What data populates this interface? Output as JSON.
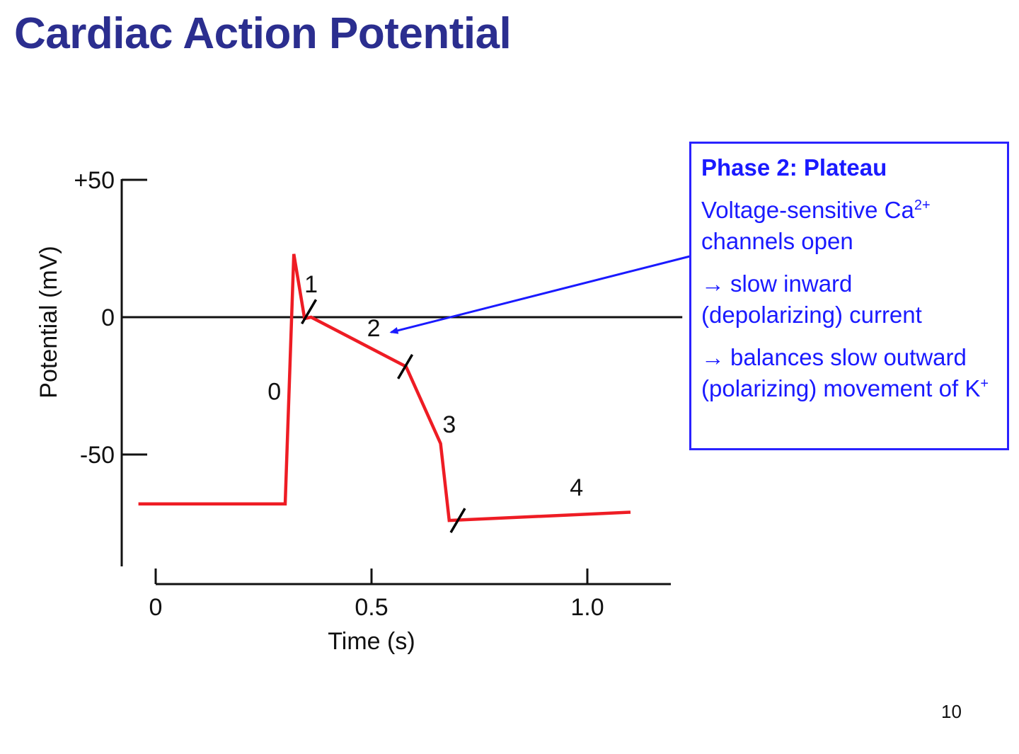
{
  "slide": {
    "title": "Cardiac Action Potential",
    "page_number": "10"
  },
  "colors": {
    "title": "#2b2e8f",
    "trace": "#ee1c24",
    "callout": "#1a1aff",
    "axis": "#111111"
  },
  "chart_data": {
    "type": "line",
    "title": "",
    "xlabel": "Time (s)",
    "ylabel": "Potential (mV)",
    "xlim": [
      -0.03,
      1.2
    ],
    "ylim": [
      -91,
      50
    ],
    "x_ticks": [
      {
        "value": 0,
        "label": "0"
      },
      {
        "value": 0.5,
        "label": "0.5"
      },
      {
        "value": 1.0,
        "label": "1.0"
      }
    ],
    "y_ticks": [
      {
        "value": 50,
        "label": "+50"
      },
      {
        "value": 0,
        "label": "0"
      },
      {
        "value": -50,
        "label": "-50"
      }
    ],
    "reference_line": {
      "y": 0,
      "x_end": 1.22
    },
    "series": [
      {
        "name": "Action potential",
        "x": [
          -0.04,
          0.3,
          0.32,
          0.345,
          0.36,
          0.58,
          0.66,
          0.68,
          1.1
        ],
        "y": [
          -68,
          -68,
          23,
          -0.5,
          0,
          -18,
          -46,
          -74,
          -71
        ]
      }
    ],
    "phase_markers": [
      {
        "x": 0.355,
        "y": 2
      },
      {
        "x": 0.578,
        "y": -18
      },
      {
        "x": 0.7,
        "y": -74
      }
    ],
    "phase_labels": [
      {
        "label": "0",
        "x": 0.275,
        "y": -30
      },
      {
        "label": "1",
        "x": 0.36,
        "y": 9
      },
      {
        "label": "2",
        "x": 0.505,
        "y": -7
      },
      {
        "label": "3",
        "x": 0.68,
        "y": -42
      },
      {
        "label": "4",
        "x": 0.975,
        "y": -65
      }
    ],
    "annotation_arrow_target": {
      "x": 0.545,
      "y": -5.5
    }
  },
  "callout": {
    "title": "Phase 2: Plateau",
    "line1": "Voltage-sensitive Ca",
    "line1_sup": "2+",
    "line2": "channels open",
    "arrow_glyph": "→",
    "para2": "slow inward (depolarizing) current",
    "para3": "balances slow outward (polarizing) movement of K",
    "para3_sup": "+"
  }
}
